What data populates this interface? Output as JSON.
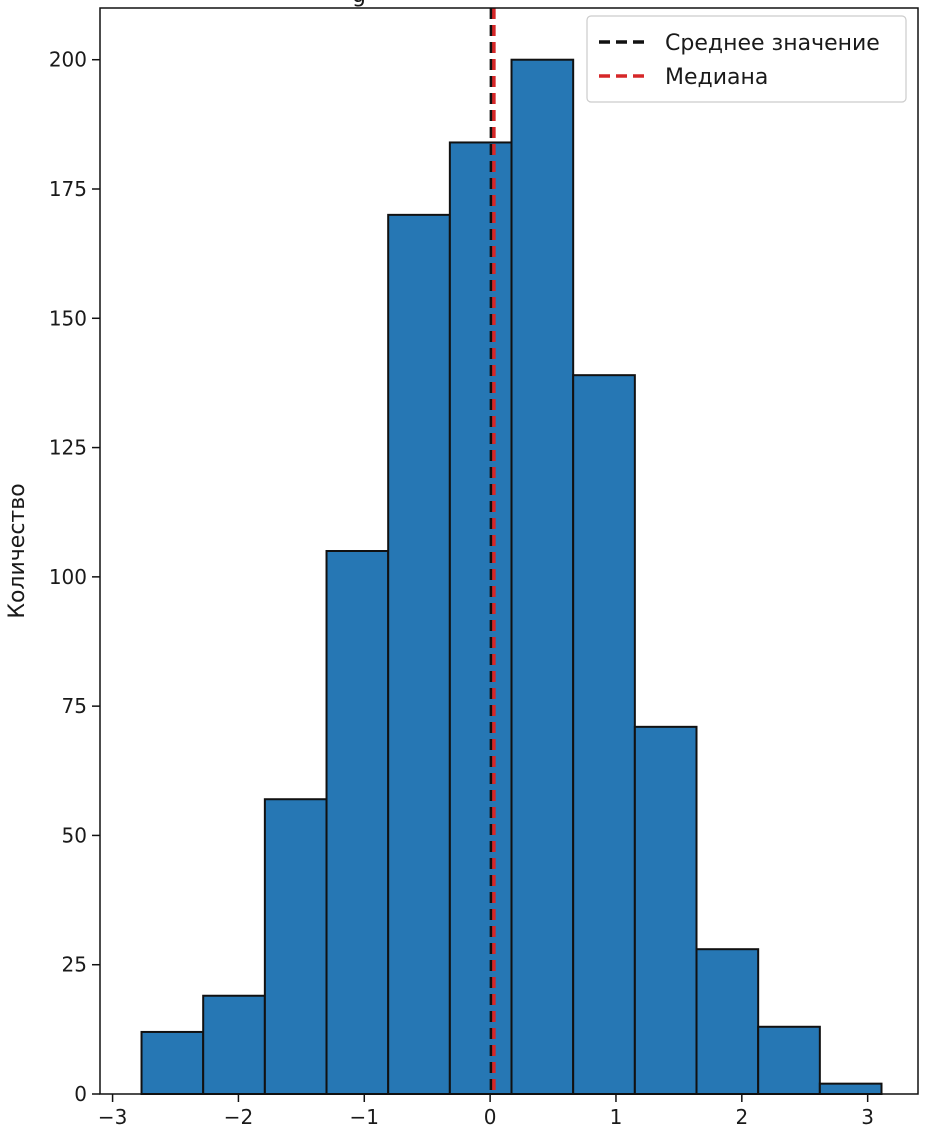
{
  "chart_data": {
    "type": "bar",
    "title_fragment": "g",
    "ylabel": "Количество",
    "xlabel": "",
    "xlim": [
      -3.1,
      3.4
    ],
    "ylim": [
      0,
      210
    ],
    "x_ticks": [
      -3,
      -2,
      -1,
      0,
      1,
      2,
      3
    ],
    "x_tick_labels": [
      "−3",
      "−2",
      "−1",
      "0",
      "1",
      "2",
      "3"
    ],
    "y_ticks": [
      0,
      25,
      50,
      75,
      100,
      125,
      150,
      175,
      200
    ],
    "y_tick_labels": [
      "0",
      "25",
      "50",
      "75",
      "100",
      "125",
      "150",
      "175",
      "200"
    ],
    "bins": [
      {
        "x0": -2.77,
        "x1": -2.28,
        "count": 12
      },
      {
        "x0": -2.28,
        "x1": -1.79,
        "count": 19
      },
      {
        "x0": -1.79,
        "x1": -1.3,
        "count": 57
      },
      {
        "x0": -1.3,
        "x1": -0.81,
        "count": 105
      },
      {
        "x0": -0.81,
        "x1": -0.32,
        "count": 170
      },
      {
        "x0": -0.32,
        "x1": 0.17,
        "count": 184
      },
      {
        "x0": 0.17,
        "x1": 0.66,
        "count": 200
      },
      {
        "x0": 0.66,
        "x1": 1.15,
        "count": 139
      },
      {
        "x0": 1.15,
        "x1": 1.64,
        "count": 71
      },
      {
        "x0": 1.64,
        "x1": 2.13,
        "count": 28
      },
      {
        "x0": 2.13,
        "x1": 2.62,
        "count": 13
      },
      {
        "x0": 2.62,
        "x1": 3.11,
        "count": 2
      }
    ],
    "vlines": [
      {
        "name": "Среднее значение",
        "x": 0.01,
        "color": "#111111",
        "style": "dashed"
      },
      {
        "name": "Медиана",
        "x": 0.03,
        "color": "#d62728",
        "style": "dashed"
      }
    ],
    "bar_color": "#2677b4",
    "bar_edge_color": "#111111",
    "legend_position": "top-right",
    "grid": false
  }
}
